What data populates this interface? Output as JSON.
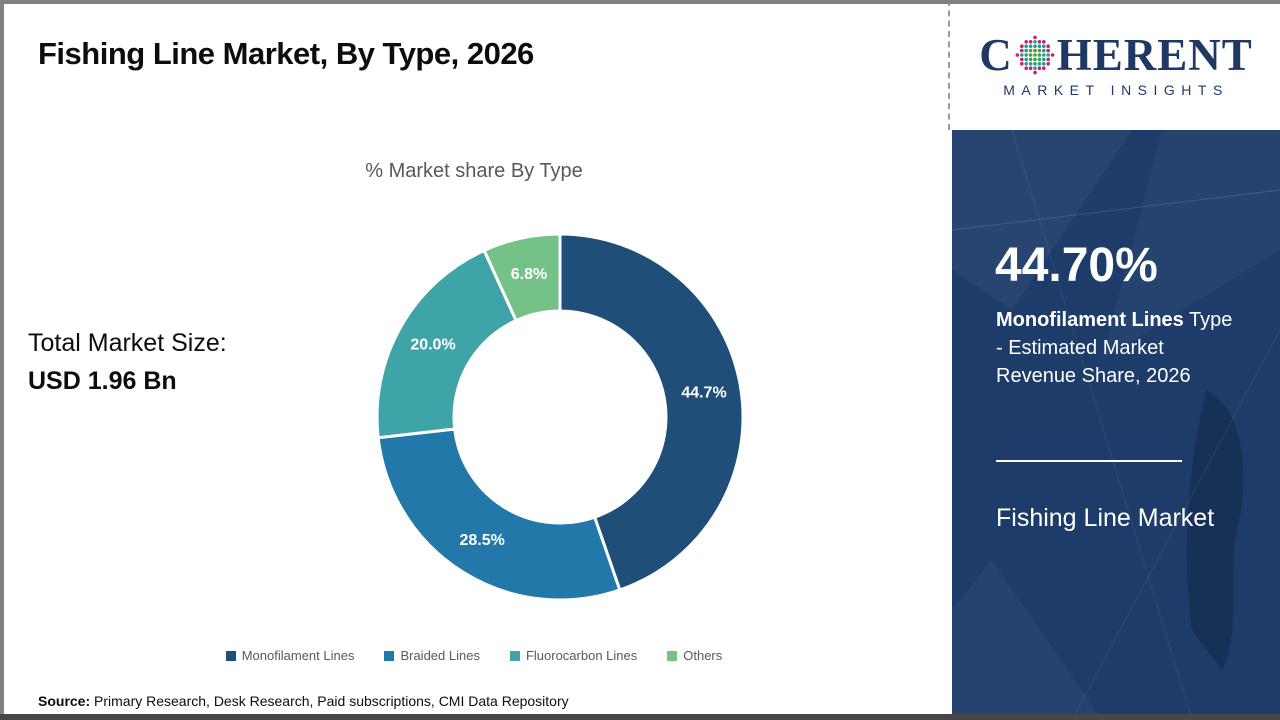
{
  "header": {
    "title": "Fishing Line Market, By Type, 2026"
  },
  "logo": {
    "brand_first_letter": "C",
    "brand_rest": "HERENT",
    "brand_sub": "MARKET INSIGHTS",
    "brand_color": "#1f3864",
    "globe_icon": "dotted-globe-icon"
  },
  "stats": {
    "label": "Total Market Size:",
    "value": "USD 1.96 Bn"
  },
  "chart_data": {
    "type": "pie",
    "donut": true,
    "title": "% Market share By Type",
    "start_angle_deg": 0,
    "direction": "clockwise",
    "categories": [
      "Monofilament Lines",
      "Braided Lines",
      "Fluorocarbon Lines",
      "Others"
    ],
    "values": [
      44.7,
      28.5,
      20.0,
      6.8
    ],
    "labels": [
      "44.7%",
      "28.5%",
      "20.0%",
      "6.8%"
    ],
    "colors": [
      "#1f4e79",
      "#2278a8",
      "#3ea4a8",
      "#74c287"
    ],
    "legend_position": "bottom"
  },
  "sidebar": {
    "background": "#1d3c6a",
    "highlight_value": "44.70%",
    "highlight_bold": "Monofilament Lines",
    "highlight_rest": " Type - Estimated Market Revenue Share, 2026",
    "market_name": "Fishing Line Market"
  },
  "source": {
    "prefix": "Source:",
    "text": " Primary Research, Desk Research, Paid subscriptions, CMI Data Repository"
  }
}
